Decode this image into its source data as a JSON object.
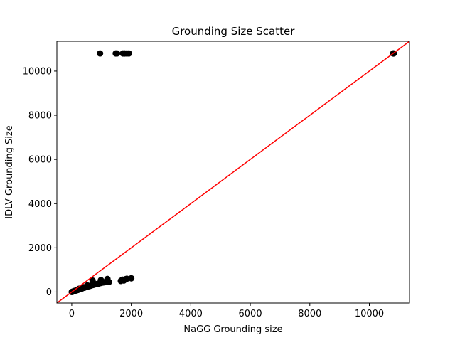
{
  "chart_data": {
    "type": "scatter",
    "title": "Grounding Size Scatter",
    "xlabel": "NaGG Grounding size",
    "ylabel": "IDLV Grounding Size",
    "xlim": [
      -500,
      11350
    ],
    "ylim": [
      -500,
      11350
    ],
    "xticks": [
      0,
      2000,
      4000,
      6000,
      8000,
      10000
    ],
    "yticks": [
      0,
      2000,
      4000,
      6000,
      8000,
      10000
    ],
    "xtick_labels": [
      "0",
      "2000",
      "4000",
      "6000",
      "8000",
      "10000"
    ],
    "ytick_labels": [
      "0",
      "2000",
      "4000",
      "6000",
      "8000",
      "10000"
    ],
    "grid": false,
    "colors": {
      "points": "#000000",
      "reference_line": "#ff0000"
    },
    "reference_line": {
      "type": "y=x"
    },
    "series": [
      {
        "x": [
          0,
          20,
          40,
          60,
          80,
          100,
          120,
          150,
          170,
          200,
          230,
          260,
          300,
          330,
          360,
          400,
          430,
          470,
          500,
          540,
          580,
          620,
          650,
          690,
          720,
          760,
          800,
          850,
          900,
          950,
          1000,
          1050,
          1100,
          1150,
          1200,
          1250,
          250,
          380,
          520,
          700,
          980,
          1200,
          1650,
          1700,
          1750,
          1800,
          1850,
          2000,
          950,
          1480,
          1520,
          1720,
          1780,
          1850,
          1920,
          10800,
          10810,
          10820
        ],
        "y": [
          0,
          10,
          20,
          30,
          40,
          50,
          60,
          70,
          80,
          90,
          110,
          120,
          140,
          150,
          170,
          190,
          200,
          220,
          240,
          250,
          260,
          280,
          300,
          310,
          320,
          340,
          350,
          360,
          380,
          400,
          420,
          430,
          440,
          460,
          470,
          450,
          150,
          220,
          300,
          520,
          540,
          590,
          500,
          560,
          520,
          580,
          600,
          620,
          10800,
          10800,
          10800,
          10800,
          10800,
          10800,
          10800,
          10800,
          10800,
          10800
        ]
      }
    ]
  }
}
